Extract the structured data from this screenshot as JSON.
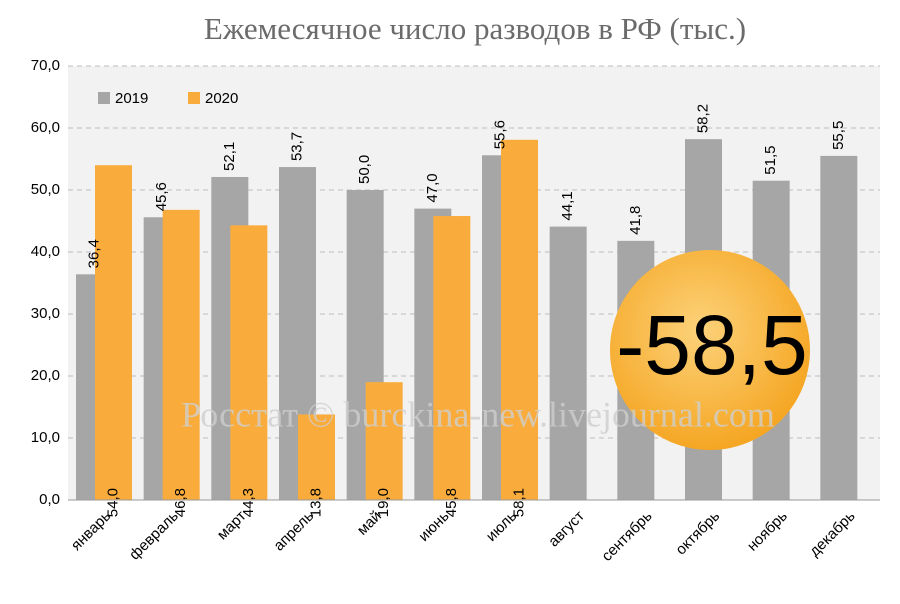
{
  "chart_data": {
    "type": "bar",
    "title": "Ежемесячное число разводов в РФ (тыс.)",
    "categories": [
      "январь",
      "февраль",
      "март",
      "апрель",
      "май",
      "июнь",
      "июль",
      "август",
      "сентябрь",
      "октябрь",
      "ноябрь",
      "декабрь"
    ],
    "series": [
      {
        "name": "2019",
        "color": "#a6a6a6",
        "values": [
          36.4,
          45.6,
          52.1,
          53.7,
          50.0,
          47.0,
          55.6,
          44.1,
          41.8,
          58.2,
          51.5,
          55.5
        ],
        "value_labels": [
          "36,4",
          "45,6",
          "52,1",
          "53,7",
          "50,0",
          "47,0",
          "55,6",
          "44,1",
          "41,8",
          "58,2",
          "51,5",
          "55,5"
        ]
      },
      {
        "name": "2020",
        "color": "#f9ac3c",
        "values": [
          54.0,
          46.8,
          44.3,
          13.8,
          19.0,
          45.8,
          58.1,
          null,
          null,
          null,
          null,
          null
        ],
        "value_labels": [
          "54,0",
          "46,8",
          "44,3",
          "13,8",
          "19,0",
          "45,8",
          "58,1",
          null,
          null,
          null,
          null,
          null
        ]
      }
    ],
    "ylim": [
      0,
      70
    ],
    "yticks": [
      {
        "value": 0,
        "label": "0,0"
      },
      {
        "value": 10,
        "label": "10,0"
      },
      {
        "value": 20,
        "label": "20,0"
      },
      {
        "value": 30,
        "label": "30,0"
      },
      {
        "value": 40,
        "label": "40,0"
      },
      {
        "value": 50,
        "label": "50,0"
      },
      {
        "value": 60,
        "label": "60,0"
      },
      {
        "value": 70,
        "label": "70,0"
      }
    ],
    "grid": true,
    "legend": "upper left",
    "annotations": [
      "-58,5",
      "Росстат © burckina-new.livejournal.com"
    ]
  }
}
